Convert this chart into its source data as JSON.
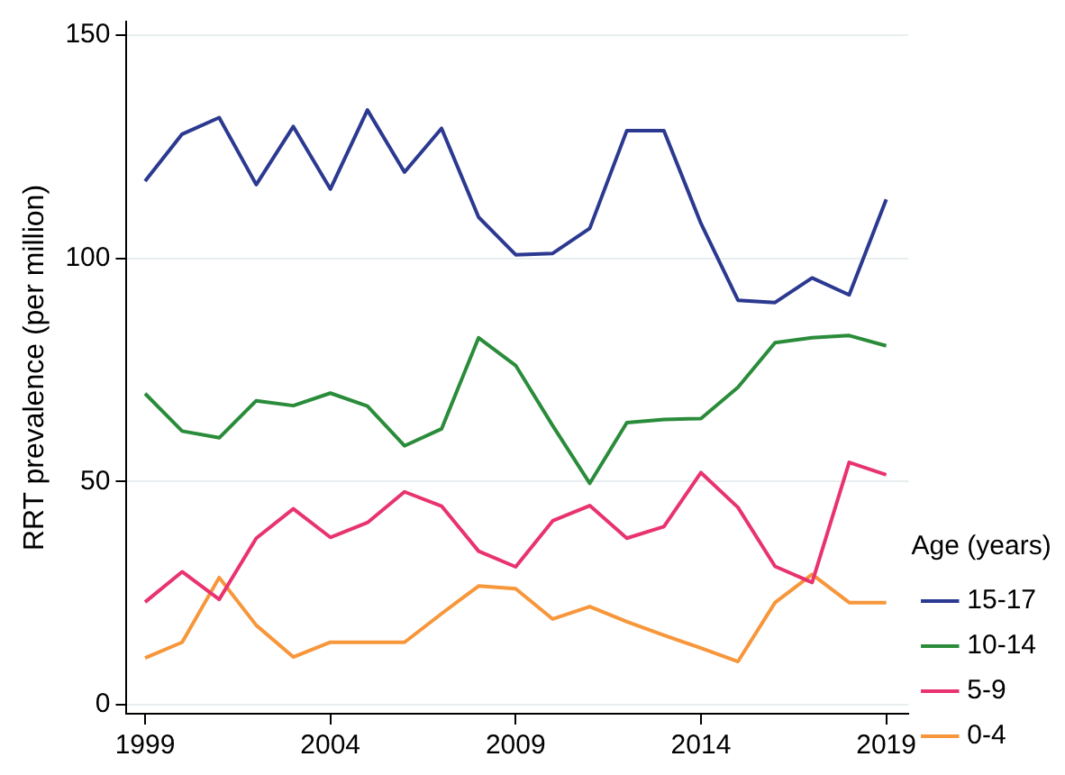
{
  "chart_data": {
    "type": "line",
    "ylabel": "RRT prevalence (per million)",
    "legend_title": "Age (years)",
    "legend": "right",
    "grid": "y",
    "marker": "none",
    "line_style": "solid",
    "x": [
      1999,
      2000,
      2001,
      2002,
      2003,
      2004,
      2005,
      2006,
      2007,
      2008,
      2009,
      2010,
      2011,
      2012,
      2013,
      2014,
      2015,
      2016,
      2017,
      2018,
      2019
    ],
    "xlim": [
      1998.5,
      2019.6
    ],
    "xticks": [
      1999,
      2004,
      2009,
      2014,
      2019
    ],
    "ylim": [
      -2,
      153
    ],
    "yticks": [
      0,
      50,
      100,
      150
    ],
    "series": [
      {
        "name": "15-17",
        "color": "#2b3990",
        "values": [
          117.3,
          127.8,
          131.5,
          116.5,
          129.5,
          115.5,
          133.2,
          119.3,
          129.1,
          109.2,
          100.8,
          101.1,
          106.7,
          128.6,
          128.6,
          107.8,
          90.6,
          90.1,
          95.6,
          91.8,
          113.2
        ]
      },
      {
        "name": "10-14",
        "color": "#2a8c3a",
        "values": [
          69.7,
          61.3,
          59.8,
          68.1,
          67.0,
          69.8,
          66.9,
          58.0,
          61.8,
          82.2,
          76.0,
          62.5,
          49.6,
          63.2,
          63.9,
          64.1,
          71.1,
          81.1,
          82.2,
          82.7,
          80.4
        ]
      },
      {
        "name": "5-9",
        "color": "#e8336e",
        "values": [
          23.0,
          29.8,
          23.6,
          37.3,
          43.9,
          37.5,
          40.8,
          47.7,
          44.5,
          34.4,
          30.9,
          41.2,
          44.6,
          37.3,
          39.9,
          52.0,
          44.2,
          31.0,
          27.4,
          54.3,
          51.5
        ]
      },
      {
        "name": "0-4",
        "color": "#f7963a",
        "values": [
          10.5,
          14.0,
          28.5,
          17.8,
          10.7,
          14.0,
          14.0,
          14.0,
          20.4,
          26.6,
          26.0,
          19.2,
          22.0,
          18.6,
          15.6,
          12.7,
          9.7,
          22.9,
          29.2,
          22.9,
          22.9
        ]
      }
    ]
  }
}
